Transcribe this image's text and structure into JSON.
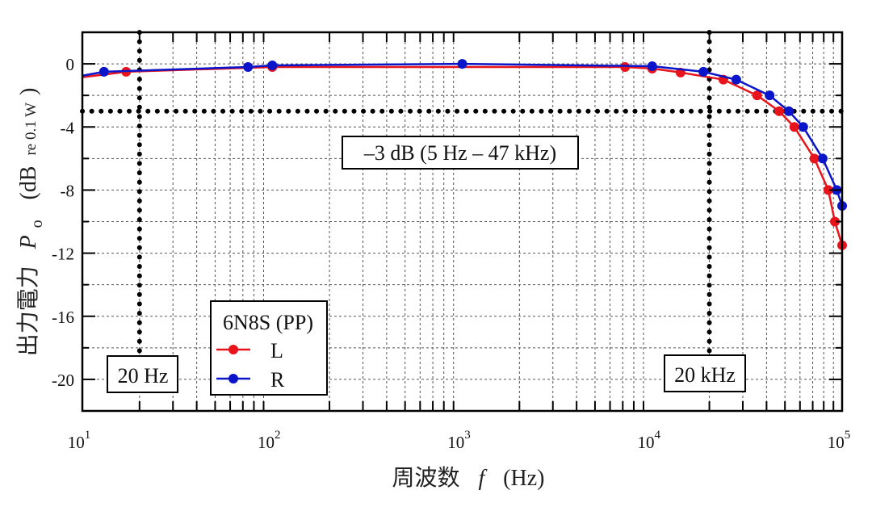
{
  "chart_data": {
    "type": "line",
    "title": "",
    "xlabel": "周波数 f (Hz)",
    "ylabel": "出力電力 Po (dB re 0.1 W)",
    "xscale": "log",
    "xlim": [
      10,
      100000
    ],
    "ylim": [
      -22,
      2
    ],
    "x_ticks": [
      10,
      100,
      1000,
      10000,
      100000
    ],
    "x_tick_labels": [
      "10^1",
      "10^2",
      "10^3",
      "10^4",
      "10^5"
    ],
    "y_ticks": [
      0,
      -4,
      -8,
      -12,
      -16,
      -20
    ],
    "y_tick_labels": [
      "0",
      "-4",
      "-8",
      "-12",
      "-16",
      "-20"
    ],
    "grid": true,
    "legend": {
      "title": "6N8S (PP)",
      "position": "lower-left-center",
      "entries": [
        "L",
        "R"
      ]
    },
    "series": [
      {
        "name": "L",
        "color": "#e8141c",
        "x": [
          17,
          100,
          7200,
          10000,
          14100,
          23700,
          35700,
          46600,
          56000,
          71400,
          84600,
          91600,
          100000
        ],
        "y": [
          -0.5,
          -0.2,
          -0.2,
          -0.3,
          -0.55,
          -1.0,
          -2.0,
          -3.0,
          -4.0,
          -6.0,
          -8.0,
          -10.0,
          -11.5
        ]
      },
      {
        "name": "R",
        "color": "#0a14c8",
        "x": [
          13,
          74.5,
          100,
          1000,
          10000,
          18600,
          27700,
          41500,
          52400,
          62400,
          79000,
          93700,
          100000
        ],
        "y": [
          -0.5,
          -0.2,
          -0.1,
          0.0,
          -0.15,
          -0.5,
          -1.0,
          -2.0,
          -3.0,
          -4.0,
          -6.0,
          -8.0,
          -9.0
        ]
      }
    ],
    "reference_lines": [
      {
        "type": "horizontal",
        "y": -3,
        "style": "dotted"
      },
      {
        "type": "vertical",
        "x": 20,
        "style": "dotted",
        "label": "20 Hz"
      },
      {
        "type": "vertical",
        "x": 20000,
        "style": "dotted",
        "label": "20 kHz"
      }
    ],
    "annotations": [
      {
        "text": "–3 dB (5 Hz – 47 kHz)"
      },
      {
        "text": "20 Hz"
      },
      {
        "text": "20 kHz"
      }
    ]
  },
  "labels": {
    "xlabel_jp": "周波数",
    "xlabel_var": "f",
    "xlabel_unit": "(Hz)",
    "ylabel_jp": "出力電力",
    "ylabel_var": "P",
    "ylabel_sub": "o",
    "ylabel_unit_open": "(dB",
    "ylabel_unit_small": "re 0.1 W",
    "ylabel_unit_close": ")",
    "annotation_3db": "–3 dB (5 Hz – 47 kHz)",
    "annotation_20hz": "20 Hz",
    "annotation_20khz": "20 kHz",
    "legend_title": "6N8S (PP)",
    "legend_L": "L",
    "legend_R": "R"
  }
}
